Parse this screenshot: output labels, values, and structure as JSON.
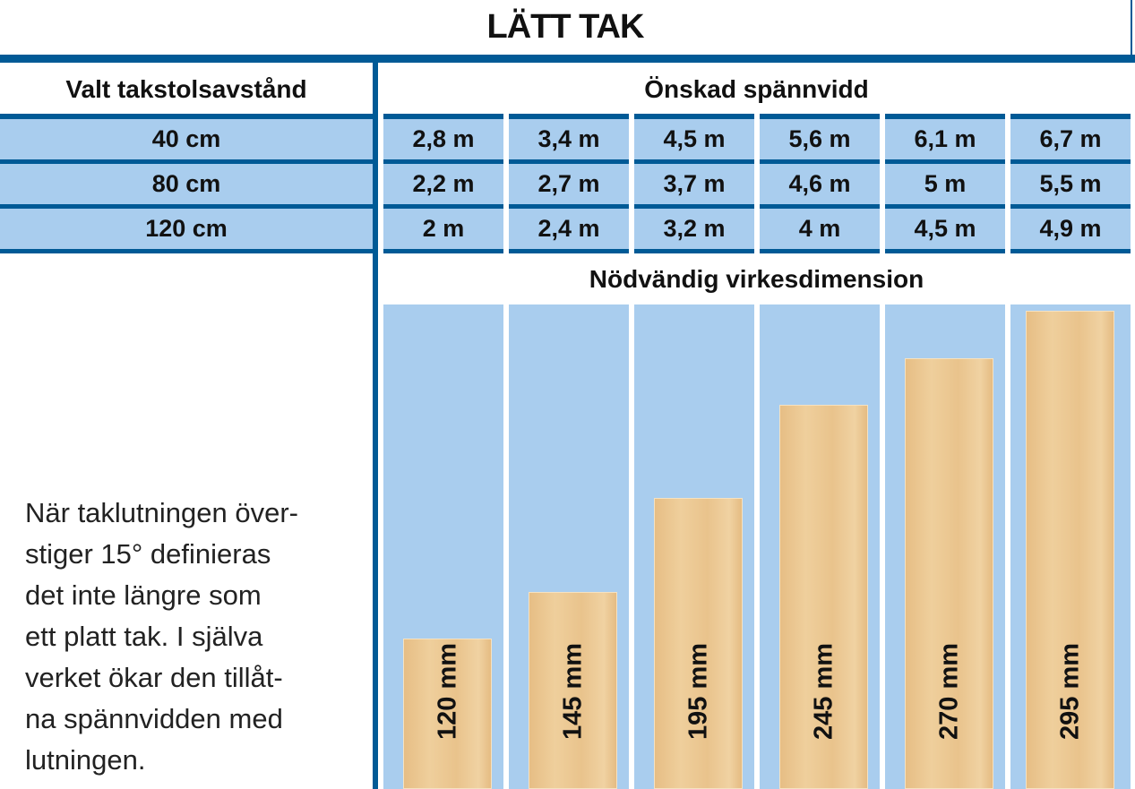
{
  "title": "LÄTT TAK",
  "row_header": "Valt takstolsavstånd",
  "col_header": "Önskad spännvidd",
  "dimension_header": "Nödvändig virkesdimension",
  "rows": [
    {
      "label": "40 cm",
      "values": [
        "2,8 m",
        "3,4 m",
        "4,5 m",
        "5,6 m",
        "6,1 m",
        "6,7 m"
      ]
    },
    {
      "label": "80 cm",
      "values": [
        "2,2 m",
        "2,7 m",
        "3,7 m",
        "4,6 m",
        "5 m",
        "5,5 m"
      ]
    },
    {
      "label": "120 cm",
      "values": [
        "2 m",
        "2,4 m",
        "3,2 m",
        "4 m",
        "4,5 m",
        "4,9 m"
      ]
    }
  ],
  "note_lines": [
    "När taklutningen över-",
    "stiger 15° definieras",
    "det inte längre som",
    "ett platt tak. I själva",
    "verket ökar den tillåt-",
    "na spännvidden med",
    "lutningen."
  ],
  "chart_data": {
    "type": "bar",
    "title": "Nödvändig virkesdimension",
    "categories": [
      "120 mm",
      "145 mm",
      "195 mm",
      "245 mm",
      "270 mm",
      "295 mm"
    ],
    "values": [
      120,
      145,
      195,
      245,
      270,
      295
    ],
    "unit": "mm"
  },
  "colors": {
    "blue": "#005a96",
    "light_blue": "#a9cdee",
    "wood": "#e9c38c"
  }
}
